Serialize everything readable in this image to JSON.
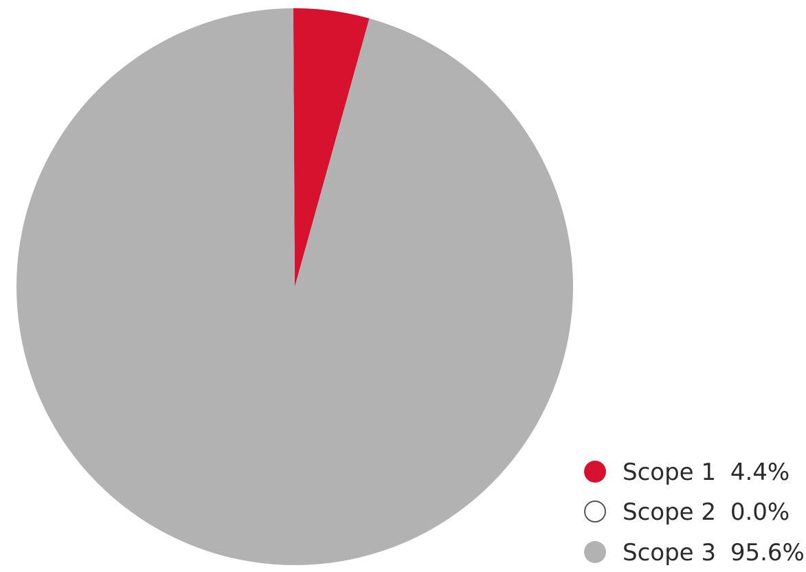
{
  "chart_data": {
    "type": "pie",
    "title": "",
    "categories": [
      "Scope 1",
      "Scope 2",
      "Scope 3"
    ],
    "values": [
      4.4,
      0.0,
      95.6
    ],
    "value_labels": [
      "4.4%",
      "0.0%",
      "95.6%"
    ],
    "legend_placement": "bottom-right",
    "start_angle": "top",
    "direction": "clockwise",
    "colors": {
      "Scope 1": "#d6122e",
      "Scope 2": "#ffffff",
      "Scope 3": "#b2b2b2"
    },
    "scope2_outline_color": "#555555"
  }
}
